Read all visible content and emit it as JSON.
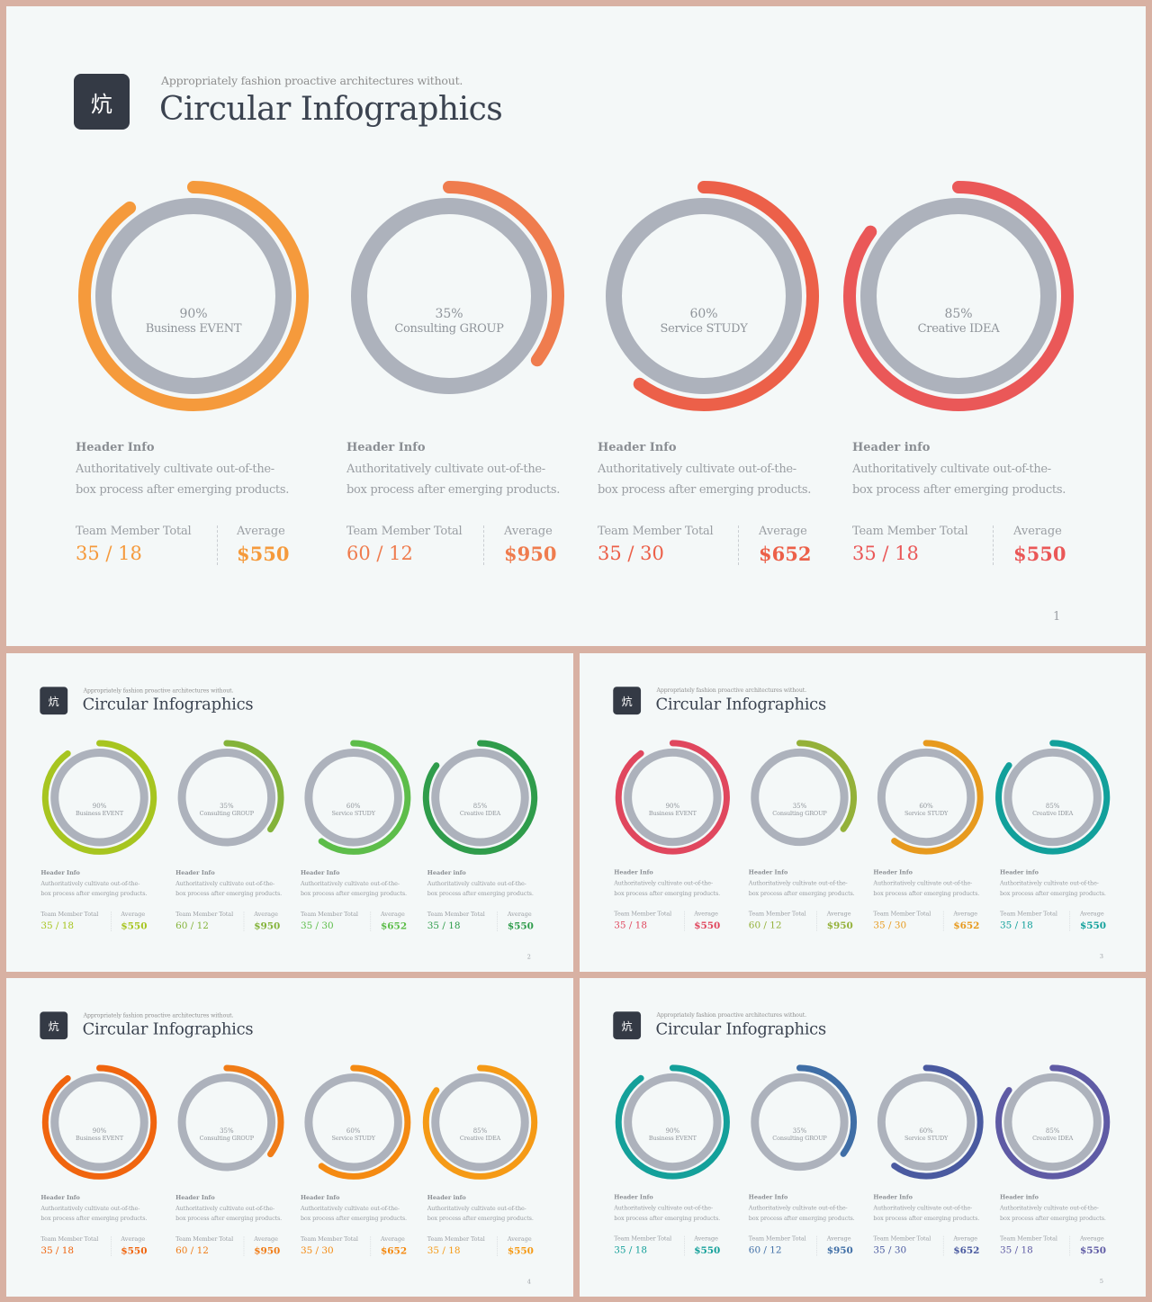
{
  "logo_glyph": "炕",
  "subtitle": "Appropriately fashion proactive architectures without.",
  "title": "Circular Infographics",
  "items": [
    {
      "percent_label": "90%",
      "percent_value": 0.9,
      "label": "Business EVENT",
      "header": "Header Info",
      "desc_line1": "Authoritatively cultivate out-of-the-",
      "desc_line2": "box process after emerging products.",
      "team_label": "Team Member Total",
      "team_value": "35 / 18",
      "avg_label": "Average",
      "avg_value": "$550"
    },
    {
      "percent_label": "35%",
      "percent_value": 0.35,
      "label": "Consulting GROUP",
      "header": "Header Info",
      "desc_line1": "Authoritatively cultivate out-of-the-",
      "desc_line2": "box process after emerging products.",
      "team_label": "Team Member Total",
      "team_value": "60 / 12",
      "avg_label": "Average",
      "avg_value": "$950"
    },
    {
      "percent_label": "60%",
      "percent_value": 0.6,
      "label": "Service STUDY",
      "header": "Header Info",
      "desc_line1": "Authoritatively cultivate out-of-the-",
      "desc_line2": "box process after emerging products.",
      "team_label": "Team Member Total",
      "team_value": "35 / 30",
      "avg_label": "Average",
      "avg_value": "$652"
    },
    {
      "percent_label": "85%",
      "percent_value": 0.85,
      "label": "Creative IDEA",
      "header": "Header info",
      "desc_line1": "Authoritatively cultivate out-of-the-",
      "desc_line2": "box process after emerging products.",
      "team_label": "Team Member Total",
      "team_value": "35 / 18",
      "avg_label": "Average",
      "avg_value": "$550"
    }
  ],
  "slides": [
    {
      "page": "1",
      "colors": [
        "#f59a3c",
        "#ef7c4e",
        "#ec6049",
        "#ea5858"
      ]
    },
    {
      "page": "2",
      "colors": [
        "#a7c520",
        "#84b33a",
        "#5dbd4a",
        "#2f9c4b"
      ]
    },
    {
      "page": "3",
      "colors": [
        "#e0475e",
        "#94b139",
        "#e79a1e",
        "#12a09b"
      ]
    },
    {
      "page": "4",
      "colors": [
        "#f0650f",
        "#f07c17",
        "#f48a12",
        "#f59a16"
      ]
    },
    {
      "page": "5",
      "colors": [
        "#14a09a",
        "#3f6ea6",
        "#4a5aa0",
        "#5f5ba5"
      ]
    }
  ],
  "track_color": "#adb2bc"
}
